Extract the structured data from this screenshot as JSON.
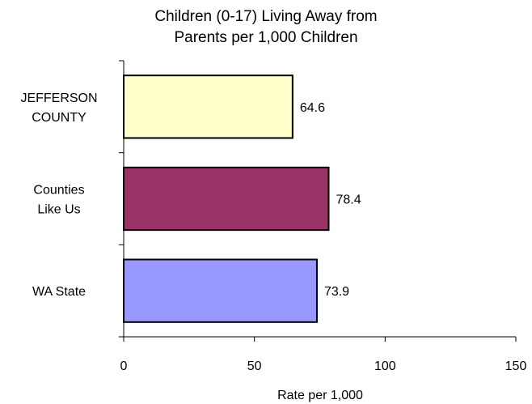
{
  "chart_data": {
    "type": "bar",
    "orientation": "horizontal",
    "title_lines": [
      "Children (0-17) Living Away from",
      "Parents per 1,000 Children"
    ],
    "xlabel": "Rate per 1,000",
    "ylabel": "",
    "xlim": [
      0,
      150
    ],
    "xticks": [
      0,
      50,
      100,
      150
    ],
    "grid": false,
    "categories": [
      {
        "lines": [
          "JEFFERSON",
          "COUNTY"
        ]
      },
      {
        "lines": [
          "Counties",
          "Like Us"
        ]
      },
      {
        "lines": [
          "WA State"
        ]
      }
    ],
    "values": [
      64.6,
      78.4,
      73.9
    ],
    "value_labels": [
      "64.6",
      "78.4",
      "73.9"
    ],
    "bar_colors": [
      "#ffffcc",
      "#993366",
      "#9999ff"
    ]
  }
}
